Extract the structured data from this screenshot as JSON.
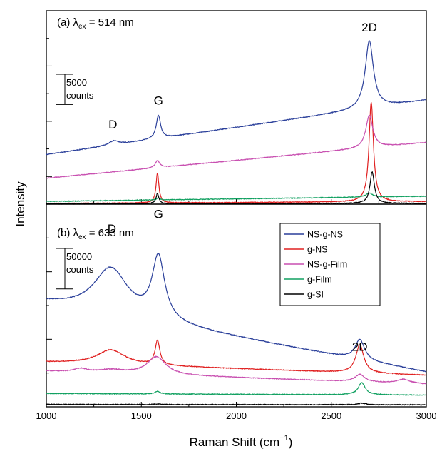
{
  "chart_data": {
    "type": "line",
    "xlabel": "Raman Shift (cm",
    "xlabel_sup": "−1",
    "xlabel_close": ")",
    "ylabel": "Intensity",
    "xlim": [
      1000,
      3000
    ],
    "x_ticks": [
      "1000",
      "1500",
      "2000",
      "2500",
      "3000"
    ],
    "legend": {
      "placement": "right-middle",
      "entries": [
        {
          "name": "NS-g-NS",
          "color": "#2a3f9a"
        },
        {
          "name": "g-NS",
          "color": "#e02020"
        },
        {
          "name": "NS-g-Film",
          "color": "#c84fb0"
        },
        {
          "name": "g-Film",
          "color": "#10a060"
        },
        {
          "name": "g-SI",
          "color": "#000000"
        }
      ]
    },
    "panels": [
      {
        "label_prefix": "(a) ",
        "label_lambda": "λ",
        "label_sub": "ex",
        "label_rest": " = 514 nm",
        "ylim": [
          0,
          32000
        ],
        "scale_bar": {
          "value": 5000,
          "label1": "5000",
          "label2": "counts"
        },
        "peak_labels": [
          {
            "text": "D",
            "x": 1350,
            "y": 12500
          },
          {
            "text": "G",
            "x": 1590,
            "y": 16500
          },
          {
            "text": "2D",
            "x": 2700,
            "y": 28600
          }
        ],
        "series": [
          {
            "name": "NS-g-NS",
            "baseline": [
              8200,
              17200
            ],
            "peaks": [
              [
                1355,
                700,
                30
              ],
              [
                1590,
                3800,
                14
              ],
              [
                2700,
                11200,
                26
              ]
            ]
          },
          {
            "name": "g-NS",
            "baseline": [
              120,
              420
            ],
            "peaks": [
              [
                1585,
                5000,
                9
              ],
              [
                2710,
                16500,
                14
              ]
            ]
          },
          {
            "name": "NS-g-Film",
            "baseline": [
              4300,
              10200
            ],
            "peaks": [
              [
                1585,
                1200,
                14
              ],
              [
                2700,
                5400,
                22
              ]
            ]
          },
          {
            "name": "g-Film",
            "baseline": [
              450,
              1300
            ],
            "peaks": [
              [
                1590,
                300,
                12
              ],
              [
                2700,
                700,
                20
              ]
            ]
          },
          {
            "name": "g-SI",
            "baseline": [
              60,
              130
            ],
            "peaks": [
              [
                1585,
                1700,
                9
              ],
              [
                2715,
                5200,
                14
              ]
            ]
          }
        ]
      },
      {
        "label_prefix": "(b) ",
        "label_lambda": "λ",
        "label_sub": "ex",
        "label_rest": " = 633 nm",
        "ylim": [
          0,
          250000
        ],
        "scale_bar": {
          "value": 50000,
          "label1": "50000",
          "label2": "counts"
        },
        "peak_labels": [
          {
            "text": "D",
            "x": 1345,
            "y": 215000
          },
          {
            "text": "G",
            "x": 1590,
            "y": 233000
          },
          {
            "text": "2D",
            "x": 2650,
            "y": 69000
          }
        ],
        "series": [
          {
            "name": "NS-g-NS",
            "baseline": [
              128000,
              43000
            ],
            "peaks": [
              [
                1340,
                57000,
                110
              ],
              [
                1590,
                77000,
                40
              ],
              [
                2650,
                25000,
                30
              ]
            ]
          },
          {
            "name": "g-NS",
            "baseline": [
              55000,
              39000
            ],
            "peaks": [
              [
                1340,
                18000,
                90
              ],
              [
                1585,
                30000,
                15
              ],
              [
                2650,
                35000,
                25
              ]
            ]
          },
          {
            "name": "NS-g-Film",
            "baseline": [
              44000,
              28000
            ],
            "peaks": [
              [
                1180,
                4000,
                40
              ],
              [
                1345,
                4000,
                90
              ],
              [
                1580,
                22000,
                60
              ],
              [
                2650,
                9000,
                30
              ],
              [
                2880,
                5000,
                40
              ]
            ]
          },
          {
            "name": "g-Film",
            "baseline": [
              16500,
              14500
            ],
            "peaks": [
              [
                1585,
                3500,
                15
              ],
              [
                2660,
                15000,
                22
              ]
            ]
          },
          {
            "name": "g-SI",
            "baseline": [
              3000,
              2500
            ],
            "peaks": [
              [
                1585,
                800,
                15
              ],
              [
                2660,
                2000,
                22
              ]
            ]
          }
        ]
      }
    ]
  }
}
